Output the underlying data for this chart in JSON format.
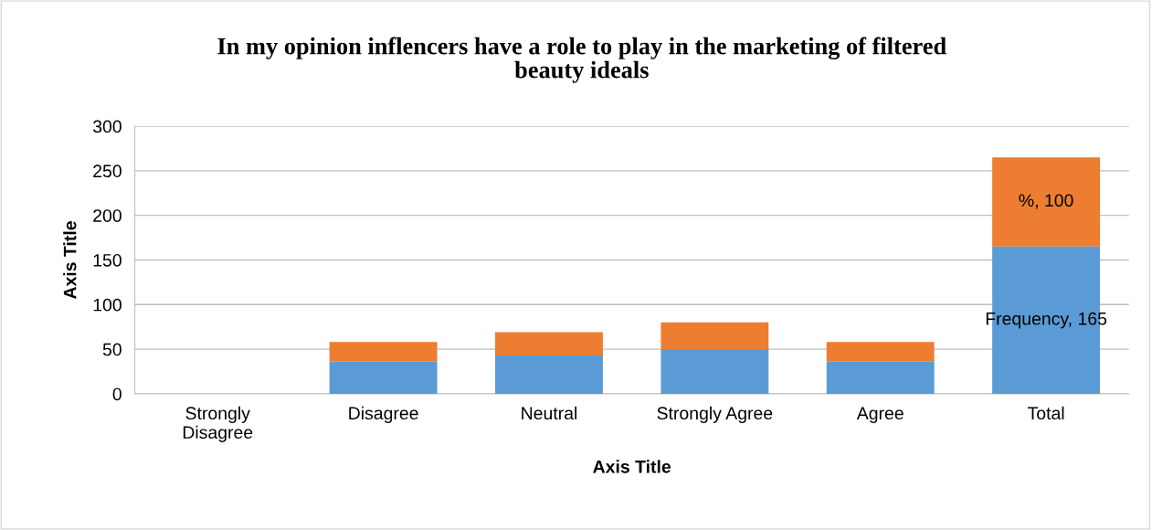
{
  "chart_data": {
    "type": "bar",
    "stacked": true,
    "title": "In my opinion inflencers have a role to play in the marketing of filtered\nbeauty ideals",
    "xlabel": "Axis Title",
    "ylabel": "Axis Title",
    "categories": [
      "Strongly\nDisagree",
      "Disagree",
      "Neutral",
      "Strongly Agree",
      "Agree",
      "Total"
    ],
    "series": [
      {
        "color": "#5b9bd5",
        "values": [
          0,
          36,
          43,
          50,
          36,
          165
        ],
        "value_labels": [
          null,
          null,
          null,
          null,
          null,
          "Frequency, 165"
        ]
      },
      {
        "color": "#ed7d31",
        "values": [
          0,
          22,
          26,
          30,
          22,
          100
        ],
        "value_labels": [
          null,
          null,
          null,
          null,
          null,
          "%, 100"
        ]
      }
    ],
    "ylim": [
      0,
      300
    ],
    "yticks": [
      0,
      50,
      100,
      150,
      200,
      250,
      300
    ],
    "grid": "y",
    "legend": false
  }
}
